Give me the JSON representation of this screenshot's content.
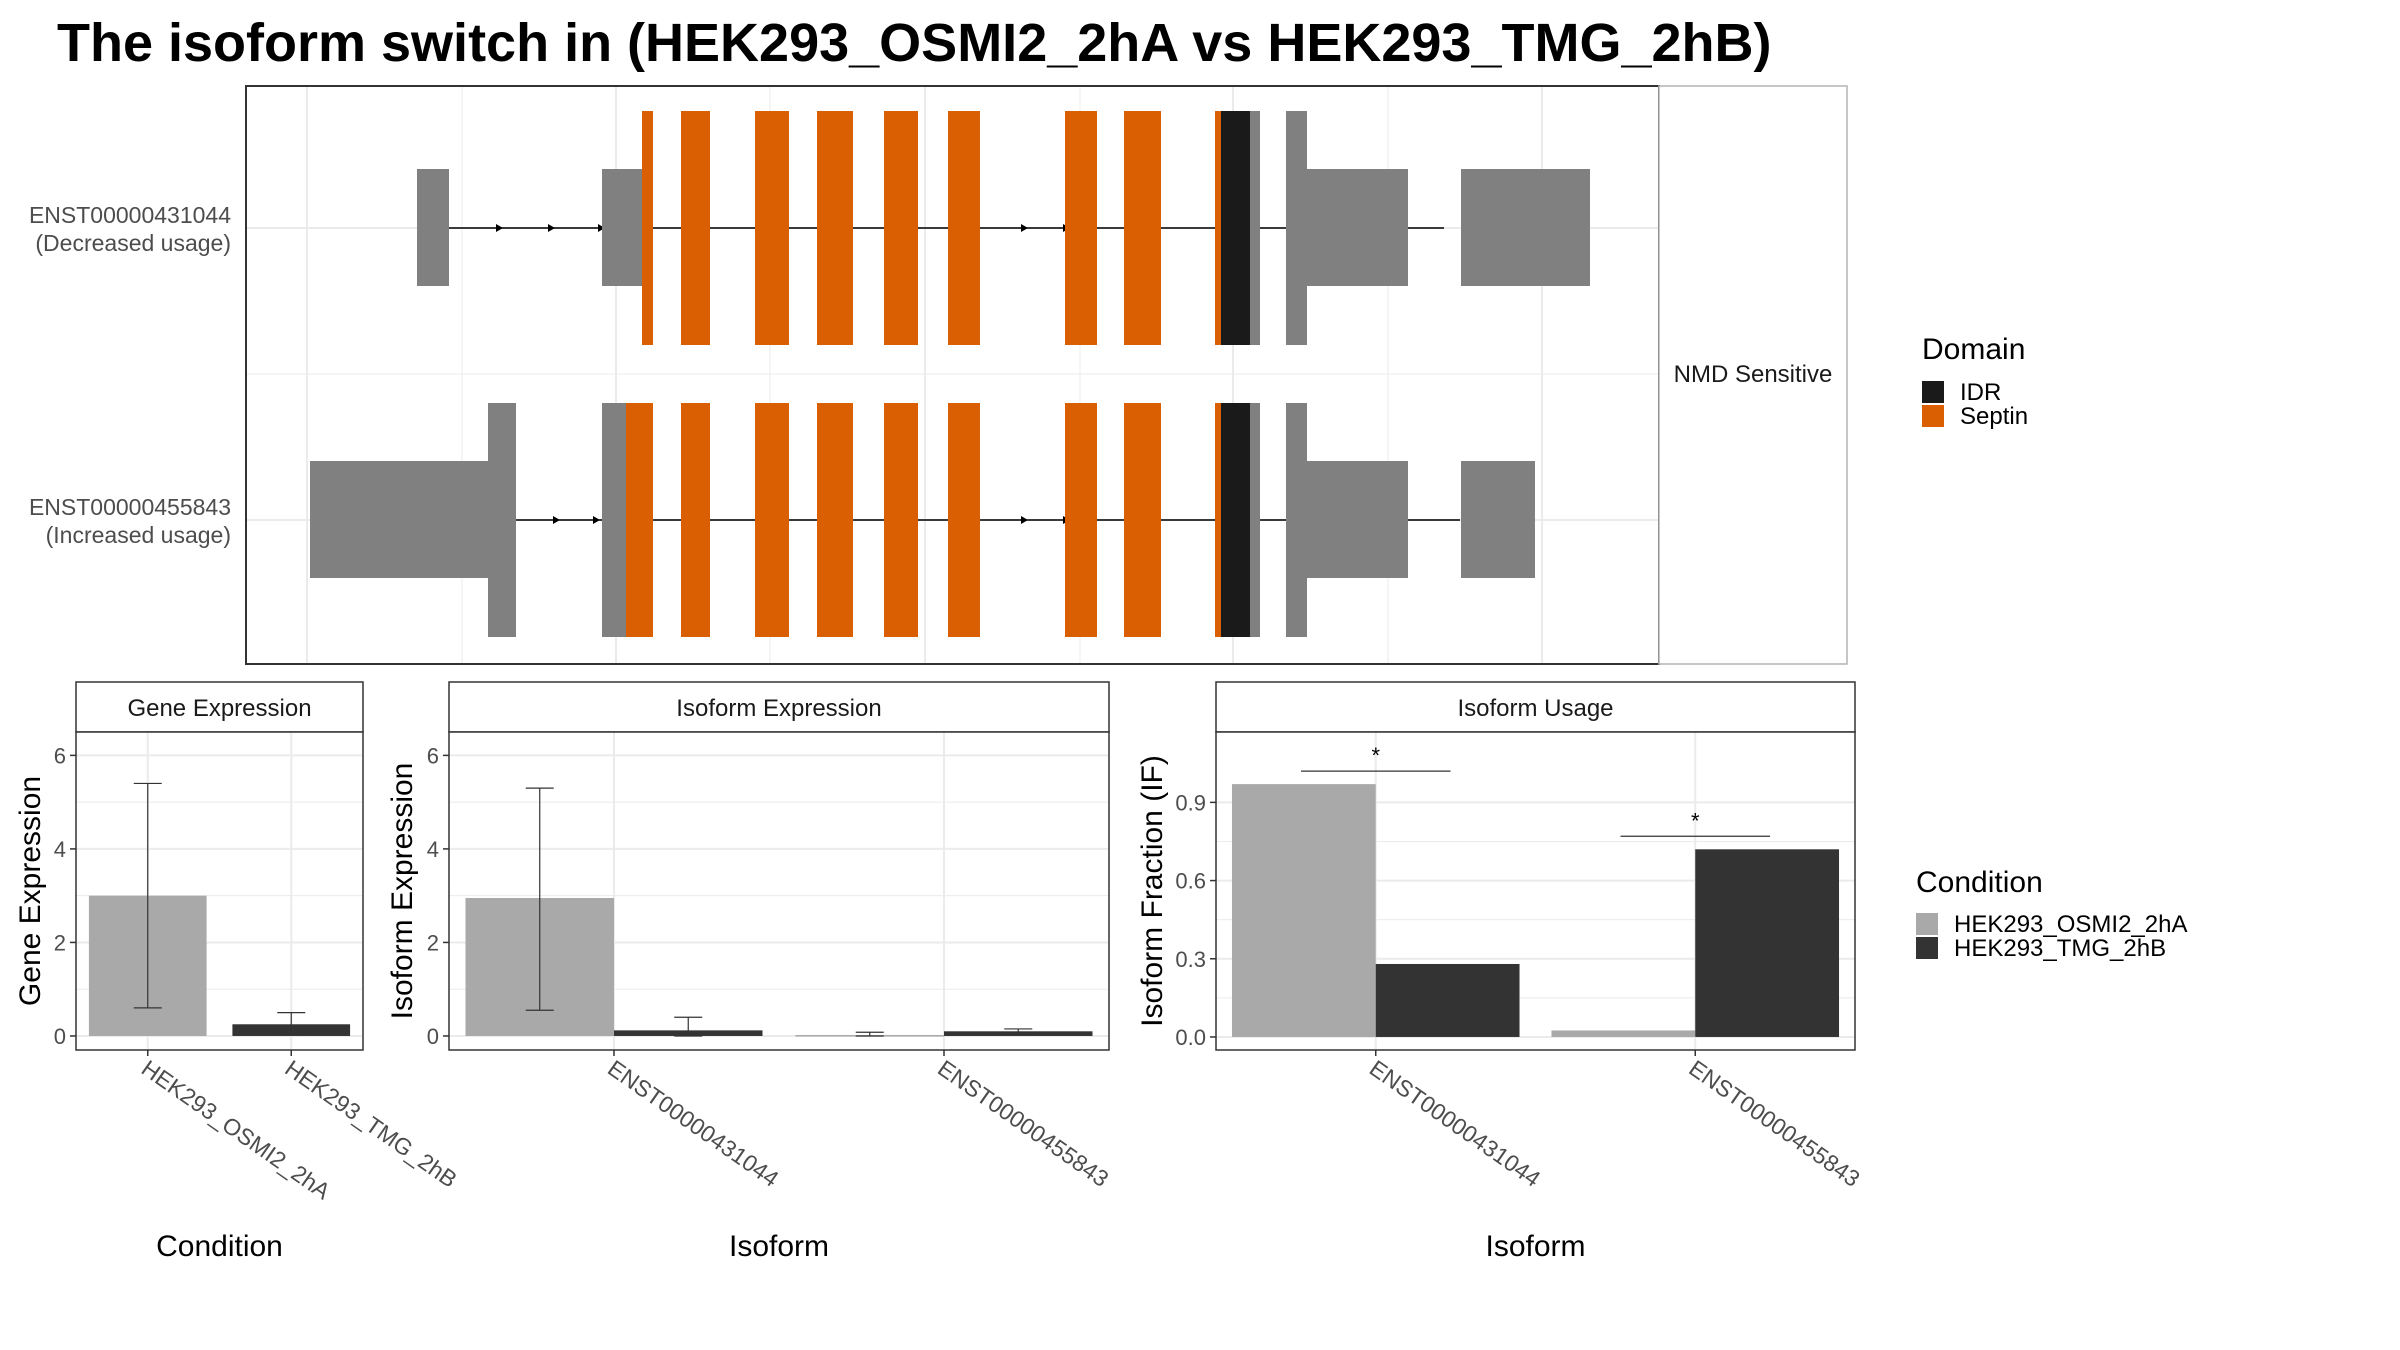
{
  "title": "The isoform switch in  (HEK293_OSMI2_2hA vs HEK293_TMG_2hB)",
  "colors": {
    "exon": "#808080",
    "idr": "#1a1a1a",
    "septin": "#d95f02",
    "cond_a": "#a9a9a9",
    "cond_b": "#333333",
    "grid": "#ebebeb",
    "panel_border": "#333333"
  },
  "transcript_panel": {
    "side_label": "NMD Sensitive",
    "transcripts": [
      {
        "id": "ENST00000431044",
        "usage": "(Decreased usage)"
      },
      {
        "id": "ENST00000455843",
        "usage": "(Increased usage)"
      }
    ]
  },
  "domain_legend": {
    "title": "Domain",
    "items": [
      {
        "label": "IDR",
        "color": "#1a1a1a"
      },
      {
        "label": "Septin",
        "color": "#d95f02"
      }
    ]
  },
  "condition_legend": {
    "title": "Condition",
    "items": [
      {
        "label": "HEK293_OSMI2_2hA",
        "color": "#a9a9a9"
      },
      {
        "label": "HEK293_TMG_2hB",
        "color": "#333333"
      }
    ]
  },
  "chart_data": [
    {
      "type": "bar",
      "title": "Gene Expression",
      "xlabel": "Condition",
      "ylabel": "Gene Expression",
      "categories": [
        "HEK293_OSMI2_2hA",
        "HEK293_TMG_2hB"
      ],
      "values": [
        3.0,
        0.25
      ],
      "error_low": [
        0.6,
        0.05
      ],
      "error_high": [
        5.4,
        0.5
      ],
      "ylim": [
        -0.3,
        6.5
      ],
      "yticks": [
        0,
        2,
        4,
        6
      ],
      "ytick_labels": [
        "0",
        "2",
        "4",
        "6"
      ],
      "grid": true
    },
    {
      "type": "bar",
      "title": "Isoform Expression",
      "xlabel": "Isoform",
      "ylabel": "Isoform Expression",
      "categories": [
        "ENST00000431044",
        "ENST00000455843"
      ],
      "series": [
        {
          "name": "HEK293_OSMI2_2hA",
          "values": [
            2.95,
            0.02
          ],
          "error_low": [
            0.55,
            0.0
          ],
          "error_high": [
            5.3,
            0.08
          ]
        },
        {
          "name": "HEK293_TMG_2hB",
          "values": [
            0.12,
            0.1
          ],
          "error_low": [
            0.0,
            0.05
          ],
          "error_high": [
            0.4,
            0.15
          ]
        }
      ],
      "ylim": [
        -0.3,
        6.5
      ],
      "yticks": [
        0,
        2,
        4,
        6
      ],
      "ytick_labels": [
        "0",
        "2",
        "4",
        "6"
      ],
      "grid": true
    },
    {
      "type": "bar",
      "title": "Isoform Usage",
      "xlabel": "Isoform",
      "ylabel": "Isoform Fraction (IF)",
      "categories": [
        "ENST00000431044",
        "ENST00000455843"
      ],
      "series": [
        {
          "name": "HEK293_OSMI2_2hA",
          "values": [
            0.97,
            0.025
          ]
        },
        {
          "name": "HEK293_TMG_2hB",
          "values": [
            0.28,
            0.72
          ]
        }
      ],
      "significance": [
        "*",
        "*"
      ],
      "significance_y": [
        1.02,
        0.77
      ],
      "ylim": [
        -0.05,
        1.17
      ],
      "yticks": [
        0.0,
        0.3,
        0.6,
        0.9
      ],
      "ytick_labels": [
        "0.0",
        "0.3",
        "0.6",
        "0.9"
      ],
      "grid": true
    }
  ]
}
